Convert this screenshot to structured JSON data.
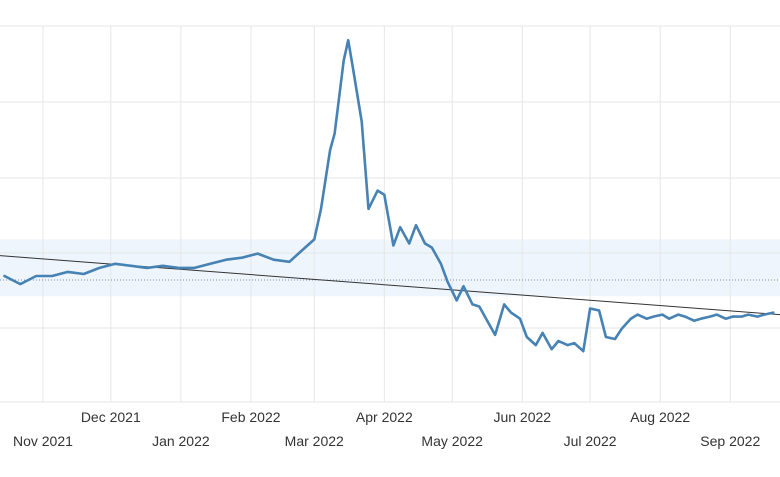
{
  "chart_data": {
    "type": "line",
    "title": "",
    "xlabel": "",
    "ylabel": "",
    "x_ticks_upper": [
      "Dec 2021",
      "Feb 2022",
      "Apr 2022",
      "Jun 2022",
      "Aug 2022"
    ],
    "x_ticks_lower": [
      "Nov 2021",
      "Jan 2022",
      "Mar 2022",
      "May 2022",
      "Jul 2022",
      "Sep 2022"
    ],
    "grid": true,
    "band_range": [
      0.42,
      0.7
    ],
    "reference_level": 0.5,
    "trend": {
      "start": 0.62,
      "end": 0.33
    },
    "series": [
      {
        "color": "#4682b4",
        "dates": [
          "2021-10-15",
          "2021-10-22",
          "2021-10-29",
          "2021-11-05",
          "2021-11-12",
          "2021-11-19",
          "2021-11-26",
          "2021-12-03",
          "2021-12-10",
          "2021-12-17",
          "2021-12-24",
          "2021-12-31",
          "2022-01-07",
          "2022-01-14",
          "2022-01-21",
          "2022-01-28",
          "2022-02-04",
          "2022-02-11",
          "2022-02-18",
          "2022-02-25",
          "2022-03-01",
          "2022-03-04",
          "2022-03-08",
          "2022-03-10",
          "2022-03-14",
          "2022-03-16",
          "2022-03-18",
          "2022-03-22",
          "2022-03-25",
          "2022-03-29",
          "2022-04-01",
          "2022-04-05",
          "2022-04-08",
          "2022-04-12",
          "2022-04-15",
          "2022-04-19",
          "2022-04-22",
          "2022-04-26",
          "2022-04-29",
          "2022-05-03",
          "2022-05-06",
          "2022-05-10",
          "2022-05-13",
          "2022-05-17",
          "2022-05-20",
          "2022-05-24",
          "2022-05-27",
          "2022-05-31",
          "2022-06-03",
          "2022-06-07",
          "2022-06-10",
          "2022-06-14",
          "2022-06-17",
          "2022-06-21",
          "2022-06-24",
          "2022-06-28",
          "2022-07-01",
          "2022-07-05",
          "2022-07-08",
          "2022-07-12",
          "2022-07-15",
          "2022-07-19",
          "2022-07-22",
          "2022-07-26",
          "2022-07-29",
          "2022-08-02",
          "2022-08-05",
          "2022-08-09",
          "2022-08-12",
          "2022-08-16",
          "2022-08-19",
          "2022-08-23",
          "2022-08-26",
          "2022-08-30",
          "2022-09-02",
          "2022-09-06",
          "2022-09-09",
          "2022-09-13",
          "2022-09-16",
          "2022-09-20"
        ],
        "values": [
          0.52,
          0.48,
          0.52,
          0.52,
          0.54,
          0.53,
          0.56,
          0.58,
          0.57,
          0.56,
          0.57,
          0.56,
          0.56,
          0.58,
          0.6,
          0.61,
          0.63,
          0.6,
          0.59,
          0.66,
          0.7,
          0.85,
          1.14,
          1.22,
          1.58,
          1.68,
          1.55,
          1.28,
          0.85,
          0.94,
          0.92,
          0.67,
          0.76,
          0.68,
          0.77,
          0.68,
          0.66,
          0.58,
          0.49,
          0.4,
          0.47,
          0.38,
          0.37,
          0.29,
          0.23,
          0.38,
          0.34,
          0.31,
          0.22,
          0.18,
          0.24,
          0.16,
          0.2,
          0.18,
          0.19,
          0.15,
          0.36,
          0.35,
          0.22,
          0.21,
          0.26,
          0.31,
          0.33,
          0.31,
          0.32,
          0.33,
          0.31,
          0.33,
          0.32,
          0.3,
          0.31,
          0.32,
          0.33,
          0.31,
          0.32,
          0.32,
          0.33,
          0.32,
          0.33,
          0.34
        ]
      }
    ],
    "x_range": [
      "2021-10-13",
      "2022-09-23"
    ],
    "y_range": [
      -0.1,
      1.75
    ]
  }
}
